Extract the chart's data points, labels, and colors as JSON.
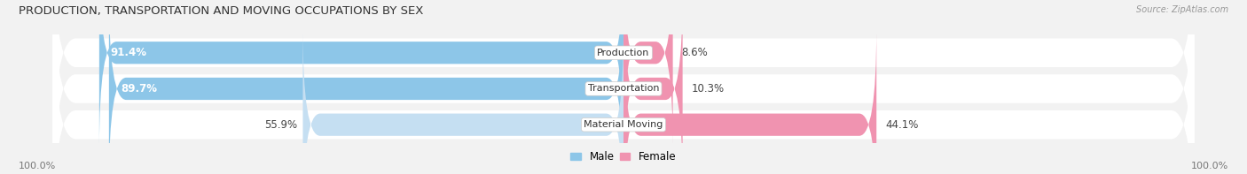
{
  "title": "PRODUCTION, TRANSPORTATION AND MOVING OCCUPATIONS BY SEX",
  "source": "Source: ZipAtlas.com",
  "categories": [
    "Production",
    "Transportation",
    "Material Moving"
  ],
  "male_values": [
    91.4,
    89.7,
    55.9
  ],
  "female_values": [
    8.6,
    10.3,
    44.1
  ],
  "male_color": "#8DC6E8",
  "female_color": "#F093B0",
  "male_light_color": "#C5DFF2",
  "row_bg_color": "#E8E8E8",
  "bg_color": "#F2F2F2",
  "title_fontsize": 9.5,
  "label_fontsize": 8.5,
  "tick_fontsize": 8,
  "legend_fontsize": 8.5,
  "bottom_left_label": "100.0%",
  "bottom_right_label": "100.0%"
}
